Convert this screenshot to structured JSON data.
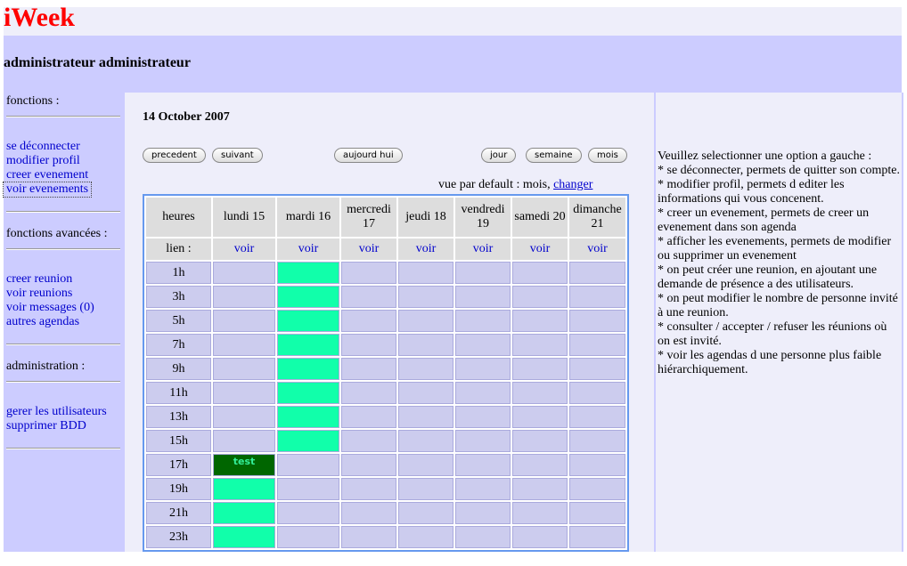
{
  "app": {
    "title": "iWeek",
    "user": "administrateur administrateur"
  },
  "sidebar": {
    "sections": [
      {
        "heading": "fonctions :",
        "links": [
          "se déconnecter",
          "modifier profil",
          "creer evenement",
          "voir evenements"
        ]
      },
      {
        "heading": "fonctions avancées :",
        "links": [
          "creer reunion",
          "voir reunions",
          "voir messages (0)",
          "autres agendas"
        ]
      },
      {
        "heading": "administration :",
        "links": [
          "gerer les utilisateurs",
          "supprimer BDD"
        ]
      }
    ]
  },
  "calendar": {
    "date": "14 October 2007",
    "nav_buttons": [
      "precedent",
      "suivant"
    ],
    "today_button": "aujourd hui",
    "view_buttons": [
      "jour",
      "semaine",
      "mois"
    ],
    "default_view": "vue par default : mois,",
    "change_link": "changer",
    "corner": "heures",
    "days": [
      "lundi 15",
      "mardi 16",
      "mercredi 17",
      "jeudi 18",
      "vendredi 19",
      "samedi 20",
      "dimanche 21"
    ],
    "link_row_label": "lien :",
    "link_text": "voir",
    "rows": [
      {
        "hour": "1h",
        "cells": [
          null,
          "#11ffaa",
          null,
          null,
          null,
          null,
          null
        ]
      },
      {
        "hour": "3h",
        "cells": [
          null,
          "#11ffaa",
          null,
          null,
          null,
          null,
          null
        ]
      },
      {
        "hour": "5h",
        "cells": [
          null,
          "#11ffaa",
          null,
          null,
          null,
          null,
          null
        ]
      },
      {
        "hour": "7h",
        "cells": [
          null,
          "#11ffaa",
          null,
          null,
          null,
          null,
          null
        ]
      },
      {
        "hour": "9h",
        "cells": [
          null,
          "#11ffaa",
          null,
          null,
          null,
          null,
          null
        ]
      },
      {
        "hour": "11h",
        "cells": [
          null,
          "#11ffaa",
          null,
          null,
          null,
          null,
          null
        ]
      },
      {
        "hour": "13h",
        "cells": [
          null,
          "#11ffaa",
          null,
          null,
          null,
          null,
          null
        ]
      },
      {
        "hour": "15h",
        "cells": [
          null,
          "#11ffaa",
          null,
          null,
          null,
          null,
          null
        ]
      },
      {
        "hour": "17h",
        "cells": [
          {
            "color": "#006600",
            "text": "test"
          },
          null,
          null,
          null,
          null,
          null,
          null
        ]
      },
      {
        "hour": "19h",
        "cells": [
          "#11ffaa",
          null,
          null,
          null,
          null,
          null,
          null
        ]
      },
      {
        "hour": "21h",
        "cells": [
          "#11ffaa",
          null,
          null,
          null,
          null,
          null,
          null
        ]
      },
      {
        "hour": "23h",
        "cells": [
          "#11ffaa",
          null,
          null,
          null,
          null,
          null,
          null
        ]
      }
    ]
  },
  "help": {
    "intro": "Veuillez selectionner une option a gauche :",
    "items": [
      "* se déconnecter, permets de quitter son compte.",
      "* modifier profil, permets d editer les informations qui vous concenent.",
      "* creer un evenement, permets de creer un evenement dans son agenda",
      "* afficher les evenements, permets de modifier ou supprimer un evenement",
      "* on peut créer une reunion, en ajoutant une demande de présence a des utilisateurs.",
      "* on peut modifier le nombre de personne invité à une reunion.",
      "* consulter / accepter / refuser les réunions où on est invité.",
      "* voir les agendas d une personne plus faible hiérarchiquement."
    ]
  }
}
